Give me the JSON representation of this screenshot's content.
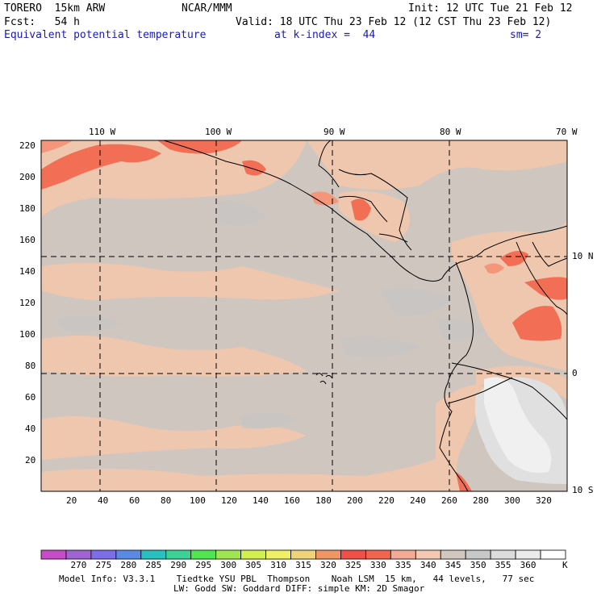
{
  "header": {
    "model": "TORERO  15km ARW",
    "org": "NCAR/MMM",
    "init": "Init: 12 UTC Tue 21 Feb 12",
    "fcst": "Fcst:   54 h",
    "valid": "Valid: 18 UTC Thu 23 Feb 12 (12 CST Thu 23 Feb 12)",
    "field": "Equivalent potential temperature",
    "level": "at k-index =  44",
    "sm": "sm= 2"
  },
  "map": {
    "top_lon_labels": [
      "110 W",
      "100 W",
      "90 W",
      "80 W",
      "70 W"
    ],
    "right_lat_labels": [
      "10 N",
      "0",
      "10 S"
    ],
    "y_axis_labels": [
      "220",
      "200",
      "180",
      "160",
      "140",
      "120",
      "100",
      "80",
      "60",
      "40",
      "20"
    ],
    "x_axis_labels": [
      "20",
      "40",
      "60",
      "80",
      "100",
      "120",
      "140",
      "160",
      "180",
      "200",
      "220",
      "240",
      "260",
      "280",
      "300",
      "320"
    ],
    "base_color": "#cfc6bf"
  },
  "colorbar": {
    "colors": [
      "#c84bc8",
      "#a064d2",
      "#7c6ee6",
      "#5a8ae6",
      "#28c0c0",
      "#3cd296",
      "#50e650",
      "#a0e650",
      "#d2f050",
      "#f0f064",
      "#f0d278",
      "#f09664",
      "#f05046",
      "#f06450",
      "#f5aa96",
      "#f5c8b4",
      "#d2c8c0",
      "#c8c8c8",
      "#dcdcdc",
      "#ebebeb",
      "#ffffff"
    ],
    "labels": [
      "270",
      "275",
      "280",
      "285",
      "290",
      "295",
      "300",
      "305",
      "310",
      "315",
      "320",
      "325",
      "330",
      "335",
      "340",
      "345",
      "350",
      "355",
      "360"
    ],
    "unit": "K"
  },
  "footer": {
    "line1": "Model Info: V3.3.1    Tiedtke YSU PBL  Thompson    Noah LSM  15 km,   44 levels,   77 sec",
    "line2": "LW: Godd SW: Goddard DIFF: simple KM: 2D Smagor"
  }
}
